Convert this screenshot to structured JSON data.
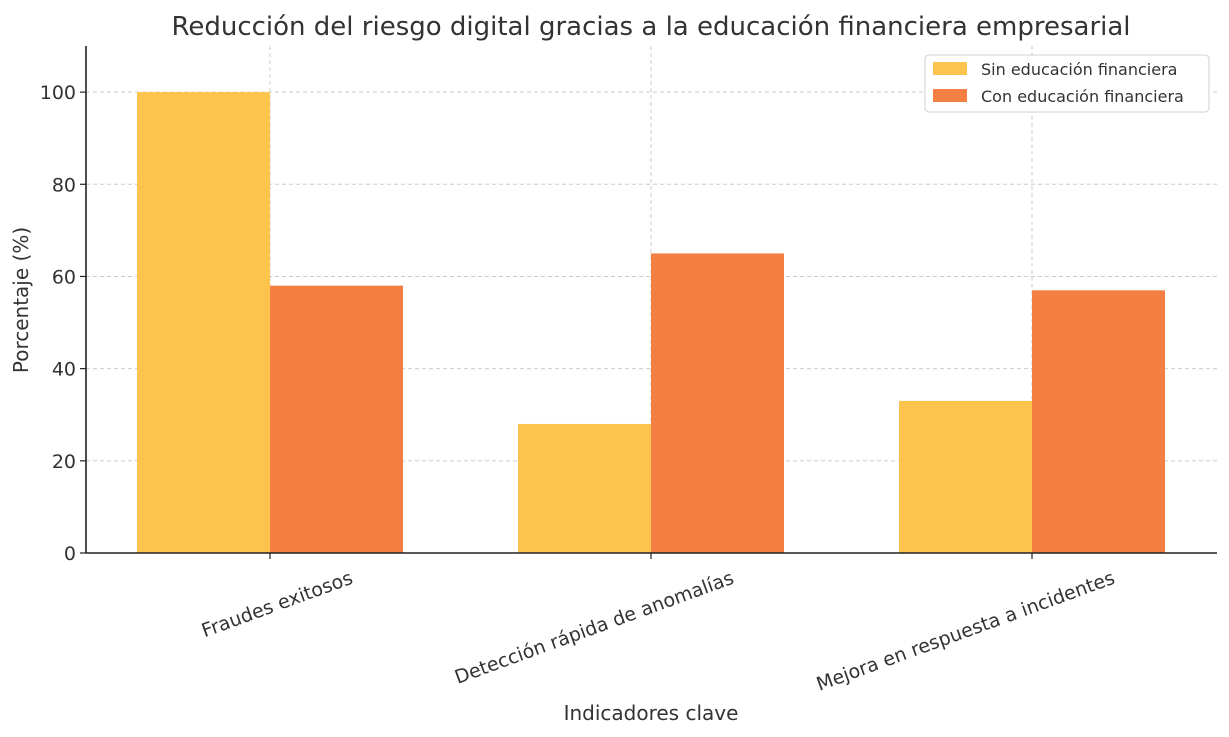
{
  "chart_data": {
    "type": "bar",
    "title": "Reducción del riesgo digital gracias a la educación financiera empresarial",
    "xlabel": "Indicadores clave",
    "ylabel": "Porcentaje (%)",
    "categories": [
      "Fraudes exitosos",
      "Detección rápida de anomalías",
      "Mejora en respuesta a incidentes"
    ],
    "series": [
      {
        "name": "Sin educación financiera",
        "values": [
          100,
          28,
          33
        ],
        "color": "#fcc44d"
      },
      {
        "name": "Con educación financiera",
        "values": [
          58,
          65,
          57
        ],
        "color": "#f47f43"
      }
    ],
    "ylim": [
      0,
      110
    ],
    "yticks": [
      0,
      20,
      40,
      60,
      80,
      100
    ],
    "grid": true,
    "legend_position": "top-right"
  }
}
